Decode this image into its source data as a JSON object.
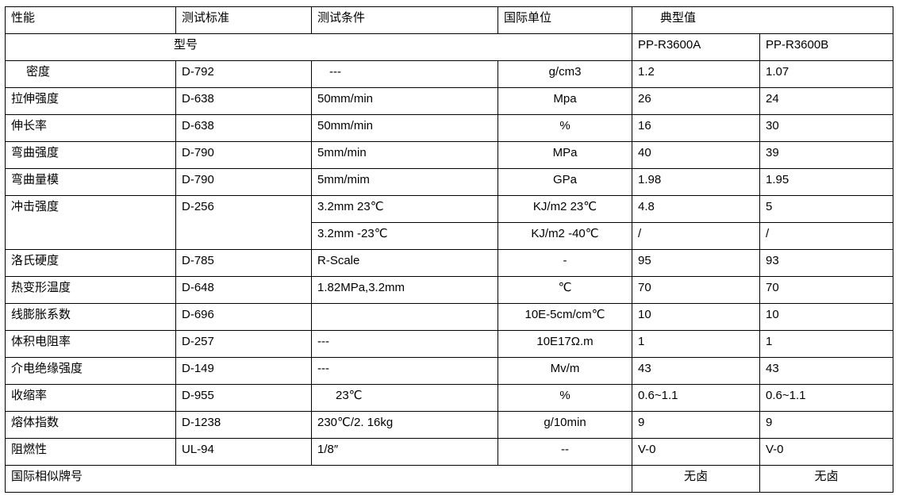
{
  "table": {
    "rows": [
      [
        {
          "t": "性能"
        },
        {
          "t": "测试标准"
        },
        {
          "t": "测试条件"
        },
        {
          "t": "国际单位"
        },
        {
          "t": "典型值",
          "cs": 2,
          "ind": 35
        }
      ],
      [
        {
          "t": "型号",
          "cs": 4,
          "ind": 212
        },
        {
          "t": "PP-R3600A"
        },
        {
          "t": "PP-R3600B"
        }
      ],
      [
        {
          "t": "密度",
          "ind": 26
        },
        {
          "t": "D-792"
        },
        {
          "t": "---",
          "ind": 22
        },
        {
          "t": "g/cm3",
          "al": "c"
        },
        {
          "t": "1.2"
        },
        {
          "t": "1.07"
        }
      ],
      [
        {
          "t": "拉伸强度"
        },
        {
          "t": "D-638"
        },
        {
          "t": "50mm/min"
        },
        {
          "t": "Mpa",
          "al": "c"
        },
        {
          "t": "26"
        },
        {
          "t": "24"
        }
      ],
      [
        {
          "t": "伸长率"
        },
        {
          "t": "D-638"
        },
        {
          "t": "50mm/min"
        },
        {
          "t": "%",
          "al": "c"
        },
        {
          "t": "16"
        },
        {
          "t": "30"
        }
      ],
      [
        {
          "t": "弯曲强度"
        },
        {
          "t": "D-790"
        },
        {
          "t": "5mm/min"
        },
        {
          "t": "MPa",
          "al": "c"
        },
        {
          "t": "40"
        },
        {
          "t": "39"
        }
      ],
      [
        {
          "t": "弯曲量模"
        },
        {
          "t": "D-790"
        },
        {
          "t": "5mm/mim"
        },
        {
          "t": "GPa",
          "al": "c"
        },
        {
          "t": "1.98"
        },
        {
          "t": "1.95"
        }
      ],
      [
        {
          "t": "冲击强度",
          "rs": 2
        },
        {
          "t": "D-256",
          "rs": 2
        },
        {
          "t": "3.2mm 23℃"
        },
        {
          "t": "KJ/m2 23℃",
          "al": "c"
        },
        {
          "t": "4.8"
        },
        {
          "t": "5"
        }
      ],
      [
        {
          "t": "3.2mm -23℃"
        },
        {
          "t": "KJ/m2 -40℃",
          "al": "c"
        },
        {
          "t": "/"
        },
        {
          "t": "/"
        }
      ],
      [
        {
          "t": "洛氏硬度"
        },
        {
          "t": "D-785"
        },
        {
          "t": "R-Scale"
        },
        {
          "t": "-",
          "al": "c"
        },
        {
          "t": "95"
        },
        {
          "t": "93"
        }
      ],
      [
        {
          "t": "热变形温度"
        },
        {
          "t": "D-648"
        },
        {
          "t": "1.82MPa,3.2mm"
        },
        {
          "t": "℃",
          "al": "c"
        },
        {
          "t": "70"
        },
        {
          "t": "70"
        }
      ],
      [
        {
          "t": "线膨胀系数"
        },
        {
          "t": "D-696"
        },
        {
          "t": ""
        },
        {
          "t": "10E-5cm/cm℃",
          "al": "c"
        },
        {
          "t": "10"
        },
        {
          "t": "10"
        }
      ],
      [
        {
          "t": "体积电阻率"
        },
        {
          "t": "D-257"
        },
        {
          "t": "---"
        },
        {
          "t": "10E17Ω.m",
          "al": "c"
        },
        {
          "t": "1"
        },
        {
          "t": "1"
        }
      ],
      [
        {
          "t": "介电绝缘强度"
        },
        {
          "t": "D-149"
        },
        {
          "t": "---"
        },
        {
          "t": "Mv/m",
          "al": "c"
        },
        {
          "t": "43"
        },
        {
          "t": "43"
        }
      ],
      [
        {
          "t": "收缩率"
        },
        {
          "t": "D-955"
        },
        {
          "t": "23℃",
          "ind": 30
        },
        {
          "t": "%",
          "al": "c"
        },
        {
          "t": "0.6~1.1"
        },
        {
          "t": "0.6~1.1"
        }
      ],
      [
        {
          "t": "熔体指数"
        },
        {
          "t": "D-1238"
        },
        {
          "t": "230℃/2. 16kg"
        },
        {
          "t": "g/10min",
          "al": "c"
        },
        {
          "t": "9"
        },
        {
          "t": "9"
        }
      ],
      [
        {
          "t": "阻燃性"
        },
        {
          "t": "UL-94"
        },
        {
          "t": "1/8″"
        },
        {
          "t": "--",
          "al": "c"
        },
        {
          "t": "V-0"
        },
        {
          "t": "V-0"
        }
      ],
      [
        {
          "t": "国际相似牌号",
          "cs": 4
        },
        {
          "t": "无卤",
          "al": "c"
        },
        {
          "t": "无卤",
          "al": "c"
        }
      ]
    ]
  }
}
